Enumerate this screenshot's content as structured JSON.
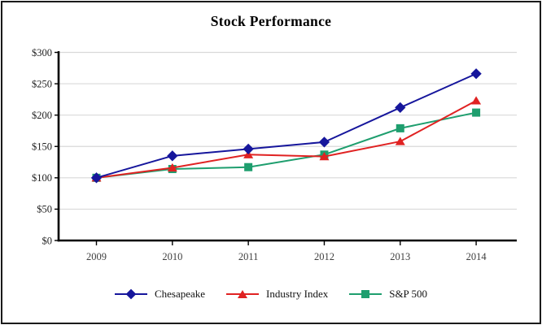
{
  "chart_data": {
    "type": "line",
    "title": "Stock Performance",
    "xlabel": "",
    "ylabel": "",
    "x_tick_labels": [
      "2009",
      "2010",
      "2011",
      "2012",
      "2013",
      "2014"
    ],
    "y_ticks": [
      0,
      50,
      100,
      150,
      200,
      250,
      300
    ],
    "y_tick_labels": [
      "$0",
      "$50",
      "$100",
      "$150",
      "$200",
      "$250",
      "$300"
    ],
    "ylim": [
      0,
      300
    ],
    "grid": "horizontal-only",
    "legend_position": "bottom-center",
    "series": [
      {
        "name": "Chesapeake",
        "marker": "diamond",
        "color": "#16169c",
        "values": [
          100,
          135,
          146,
          157,
          212,
          266
        ]
      },
      {
        "name": "Industry Index",
        "marker": "triangle",
        "color": "#e02222",
        "values": [
          100,
          116,
          137,
          134,
          158,
          223
        ]
      },
      {
        "name": "S&P 500",
        "marker": "square",
        "color": "#1e9e6e",
        "values": [
          100,
          114,
          117,
          137,
          179,
          204
        ]
      }
    ],
    "axis_color": "#000000",
    "gridline_color": "#d9d9d9",
    "x_label_color": "#3f3f3f",
    "y_label_color": "#1f1f1f"
  }
}
